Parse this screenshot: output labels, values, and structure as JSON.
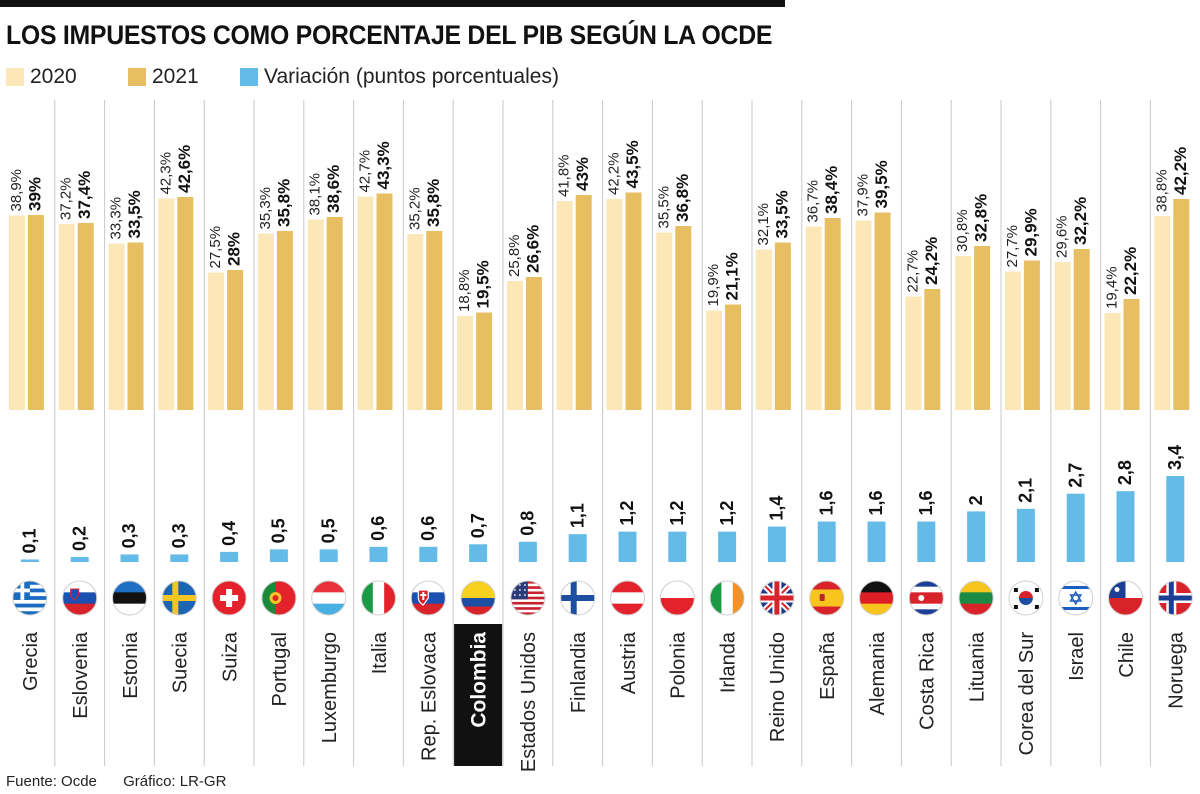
{
  "title": "LOS IMPUESTOS COMO PORCENTAJE DEL PIB SEGÚN LA OCDE",
  "legend": [
    {
      "label": "2020",
      "color": "#fce7b8"
    },
    {
      "label": "2021",
      "color": "#e7bf62"
    },
    {
      "label": "Variación (puntos porcentuales)",
      "color": "#64bbe8"
    }
  ],
  "colors": {
    "y2020": "#fce7b8",
    "y2021": "#e7bf62",
    "variation": "#64bbe8",
    "separator": "#c8c8c8",
    "text": "#222222",
    "highlight_bg": "#111111",
    "highlight_text": "#ffffff"
  },
  "chart_data": {
    "type": "bar",
    "title": "LOS IMPUESTOS COMO PORCENTAJE DEL PIB SEGÚN LA OCDE",
    "categories": [
      "Grecia",
      "Eslovenia",
      "Estonia",
      "Suecia",
      "Suiza",
      "Portugal",
      "Luxemburgo",
      "Italia",
      "Rep. Eslovaca",
      "Colombia",
      "Estados Unidos",
      "Finlandia",
      "Austria",
      "Polonia",
      "Irlanda",
      "Reino Unido",
      "España",
      "Alemania",
      "Costa Rica",
      "Lituania",
      "Corea del Sur",
      "Israel",
      "Chile",
      "Noruega"
    ],
    "highlight": "Colombia",
    "series": [
      {
        "name": "2020",
        "values": [
          38.9,
          37.2,
          33.3,
          42.3,
          27.5,
          35.3,
          38.1,
          42.7,
          35.2,
          18.8,
          25.8,
          41.8,
          42.2,
          35.5,
          19.9,
          32.1,
          36.7,
          37.9,
          22.7,
          30.8,
          27.7,
          29.6,
          19.4,
          38.8
        ],
        "labels": [
          "38,9%",
          "37,2%",
          "33,3%",
          "42,3%",
          "27,5%",
          "35,3%",
          "38,1%",
          "42,7%",
          "35,2%",
          "18,8%",
          "25,8%",
          "41,8%",
          "42,2%",
          "35,5%",
          "19,9%",
          "32,1%",
          "36,7%",
          "37,9%",
          "22,7%",
          "30,8%",
          "27,7%",
          "29,6%",
          "19,4%",
          "38,8%"
        ]
      },
      {
        "name": "2021",
        "values": [
          39,
          37.4,
          33.5,
          42.6,
          28,
          35.8,
          38.6,
          43.3,
          35.8,
          19.5,
          26.6,
          43,
          43.5,
          36.8,
          21.1,
          33.5,
          38.4,
          39.5,
          24.2,
          32.8,
          29.9,
          32.2,
          22.2,
          42.2
        ],
        "labels": [
          "39%",
          "37,4%",
          "33,5%",
          "42,6%",
          "28%",
          "35,8%",
          "38,6%",
          "43,3%",
          "35,8%",
          "19,5%",
          "26,6%",
          "43%",
          "43,5%",
          "36,8%",
          "21,1%",
          "33,5%",
          "38,4%",
          "39,5%",
          "24,2%",
          "32,8%",
          "29,9%",
          "32,2%",
          "22,2%",
          "42,2%"
        ]
      },
      {
        "name": "Variación (puntos porcentuales)",
        "values": [
          0.1,
          0.2,
          0.3,
          0.3,
          0.4,
          0.5,
          0.5,
          0.6,
          0.6,
          0.7,
          0.8,
          1.1,
          1.2,
          1.2,
          1.2,
          1.4,
          1.6,
          1.6,
          1.6,
          2,
          2.1,
          2.7,
          2.8,
          3.4
        ],
        "labels": [
          "0,1",
          "0,2",
          "0,3",
          "0,3",
          "0,4",
          "0,5",
          "0,5",
          "0,6",
          "0,6",
          "0,7",
          "0,8",
          "1,1",
          "1,2",
          "1,2",
          "1,2",
          "1,4",
          "1,6",
          "1,6",
          "1,6",
          "2",
          "2,1",
          "2,7",
          "2,8",
          "3,4"
        ]
      }
    ],
    "flags": [
      "greece-flag-icon",
      "slovenia-flag-icon",
      "estonia-flag-icon",
      "sweden-flag-icon",
      "switzerland-flag-icon",
      "portugal-flag-icon",
      "luxembourg-flag-icon",
      "italy-flag-icon",
      "slovakia-flag-icon",
      "colombia-flag-icon",
      "usa-flag-icon",
      "finland-flag-icon",
      "austria-flag-icon",
      "poland-flag-icon",
      "ireland-flag-icon",
      "uk-flag-icon",
      "spain-flag-icon",
      "germany-flag-icon",
      "costa-rica-flag-icon",
      "lithuania-flag-icon",
      "south-korea-flag-icon",
      "israel-flag-icon",
      "chile-flag-icon",
      "norway-flag-icon"
    ],
    "xlabel": "",
    "ylabel": "",
    "ylim": [
      0,
      45
    ],
    "variation_ylim": [
      0,
      3.4
    ]
  },
  "footer": {
    "source": "Fuente: Ocde",
    "credit": "Gráfico: LR-GR"
  }
}
